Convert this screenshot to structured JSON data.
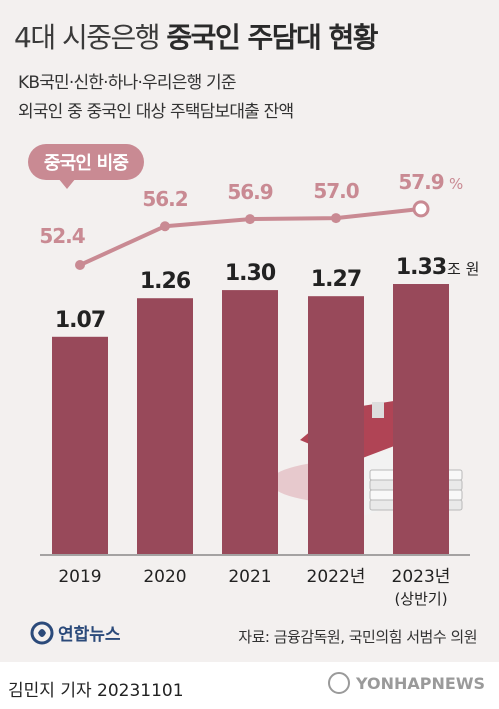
{
  "title": {
    "light": "4대 시중은행",
    "bold": "중국인 주담대 현황"
  },
  "subtitle": {
    "line1": "KB국민·신한·하나·우리은행 기준",
    "line2": "외국인 중 중국인 대상 주택담보대출 잔액"
  },
  "badge": "중국인 비중",
  "footer": {
    "logo": "연합뉴스",
    "source": "자료: 금융감독원, 국민의힘 서범수 의원",
    "reporter": "김민지 기자  20231101",
    "watermark": "YONHAPNEWS"
  },
  "colors": {
    "bar": "#98495a",
    "line": "#c98a93",
    "line_label": "#c98a93",
    "background": "#f3f0ef"
  },
  "chart_data": {
    "type": "bar",
    "categories": [
      "2019",
      "2020",
      "2021",
      "2022년",
      "2023년"
    ],
    "category_sublabels": [
      "",
      "",
      "",
      "",
      "(상반기)"
    ],
    "values": [
      1.07,
      1.26,
      1.3,
      1.27,
      1.33
    ],
    "value_labels": [
      "1.07",
      "1.26",
      "1.30",
      "1.27",
      "1.33"
    ],
    "value_unit": "조 원",
    "overlay_line": {
      "name": "중국인 비중",
      "values": [
        52.4,
        56.2,
        56.9,
        57.0,
        57.9
      ],
      "value_labels": [
        "52.4",
        "56.2",
        "56.9",
        "57.0",
        "57.9"
      ],
      "unit": "%"
    }
  }
}
